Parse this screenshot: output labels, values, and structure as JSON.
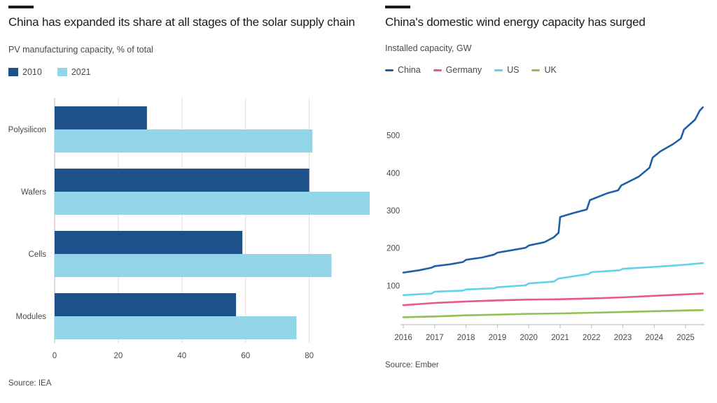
{
  "chart_data": [
    {
      "type": "bar",
      "orientation": "horizontal",
      "title": "China has expanded its share at all stages of the solar supply chain",
      "subtitle": "PV manufacturing capacity, % of total",
      "source": "Source: IEA",
      "categories": [
        "Polysilicon",
        "Wafers",
        "Cells",
        "Modules"
      ],
      "series": [
        {
          "name": "2010",
          "color": "#1d5189",
          "values": [
            29,
            80,
            59,
            57
          ]
        },
        {
          "name": "2021",
          "color": "#93d5e8",
          "values": [
            81,
            99,
            87,
            76
          ]
        }
      ],
      "xticks": [
        "0",
        "20",
        "40",
        "60",
        "80"
      ],
      "xlim": [
        0,
        99
      ],
      "legend_position": "top-left"
    },
    {
      "type": "line",
      "title": "China's domestic wind energy capacity has surged",
      "subtitle": "Installed capacity, GW",
      "source": "Source: Ember",
      "xticks": [
        "2016",
        "2017",
        "2018",
        "2019",
        "2020",
        "2021",
        "2022",
        "2023",
        "2024",
        "2025"
      ],
      "yticks": [
        "100",
        "200",
        "300",
        "400",
        "500"
      ],
      "xlim": [
        2016,
        2025.6
      ],
      "ylim": [
        0,
        600
      ],
      "legend_position": "top-left",
      "series": [
        {
          "name": "China",
          "color": "#1f5ea8",
          "x": [
            2016,
            2016.5,
            2016.9,
            2017.0,
            2017.5,
            2017.9,
            2018.0,
            2018.5,
            2018.9,
            2019.0,
            2019.5,
            2019.9,
            2020.0,
            2020.5,
            2020.8,
            2020.95,
            2021.0,
            2021.4,
            2021.85,
            2021.95,
            2022.5,
            2022.85,
            2022.95,
            2023.5,
            2023.85,
            2023.95,
            2024.2,
            2024.6,
            2024.85,
            2024.95,
            2025.3,
            2025.45,
            2025.55
          ],
          "y": [
            135,
            141,
            148,
            152,
            157,
            163,
            169,
            175,
            183,
            188,
            195,
            201,
            207,
            216,
            229,
            241,
            283,
            293,
            303,
            328,
            346,
            354,
            367,
            390,
            414,
            441,
            458,
            477,
            492,
            516,
            542,
            566,
            575
          ]
        },
        {
          "name": "Germany",
          "color": "#e8588f",
          "x": [
            2016,
            2017,
            2018,
            2019,
            2020,
            2021,
            2022,
            2023,
            2024,
            2025.55
          ],
          "y": [
            48,
            54,
            58,
            61,
            63,
            64,
            66,
            69,
            73,
            79
          ]
        },
        {
          "name": "US",
          "color": "#5ed3ea",
          "x": [
            2016,
            2016.9,
            2017.0,
            2017.9,
            2018.0,
            2018.9,
            2019.0,
            2019.9,
            2020.0,
            2020.8,
            2020.95,
            2021.5,
            2021.9,
            2022.0,
            2022.9,
            2023.0,
            2024.0,
            2025.0,
            2025.55
          ],
          "y": [
            75,
            79,
            84,
            87,
            90,
            93,
            96,
            101,
            106,
            111,
            119,
            126,
            131,
            136,
            141,
            145,
            150,
            156,
            160
          ]
        },
        {
          "name": "UK",
          "color": "#92c052",
          "x": [
            2016,
            2017,
            2018,
            2019,
            2020,
            2021,
            2022,
            2023,
            2024,
            2025.55
          ],
          "y": [
            16,
            18,
            21,
            23,
            25,
            26,
            28,
            30,
            32,
            35
          ]
        }
      ]
    }
  ]
}
